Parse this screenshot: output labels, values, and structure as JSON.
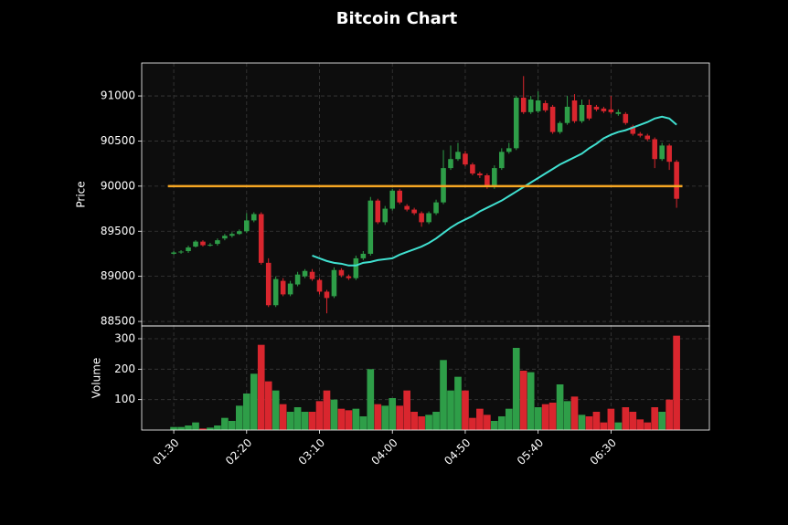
{
  "chart_data": {
    "type": "candlestick",
    "title": "Bitcoin Chart",
    "ylabel": "Price",
    "x": [
      "01:30",
      null,
      null,
      null,
      null,
      null,
      null,
      null,
      null,
      null,
      "02:20",
      null,
      null,
      null,
      null,
      null,
      null,
      null,
      null,
      null,
      "03:10",
      null,
      null,
      null,
      null,
      null,
      null,
      null,
      null,
      null,
      "04:00",
      null,
      null,
      null,
      null,
      null,
      null,
      null,
      null,
      null,
      "04:50",
      null,
      null,
      null,
      null,
      null,
      null,
      null,
      null,
      null,
      "05:40",
      null,
      null,
      null,
      null,
      null,
      null,
      null,
      null,
      null,
      "06:30",
      null,
      null,
      null,
      null,
      null,
      null,
      null,
      null,
      null
    ],
    "open": [
      89250,
      89265,
      89280,
      89330,
      89385,
      89340,
      89360,
      89420,
      89450,
      89470,
      89500,
      89620,
      89690,
      89150,
      88680,
      88950,
      88800,
      88910,
      89000,
      89050,
      88960,
      88830,
      88780,
      89070,
      89000,
      88980,
      89200,
      89250,
      89840,
      89600,
      89750,
      89950,
      89780,
      89740,
      89700,
      89600,
      89700,
      89820,
      90200,
      90300,
      90360,
      90240,
      90140,
      90120,
      89990,
      90200,
      90380,
      90420,
      90980,
      90820,
      90830,
      90920,
      90880,
      90600,
      90700,
      90950,
      90720,
      90900,
      90880,
      90860,
      90850,
      90800,
      90800,
      90660,
      90580,
      90560,
      90520,
      90300,
      90450,
      90270
    ],
    "high": [
      89280,
      89290,
      89340,
      89400,
      89400,
      89370,
      89420,
      89470,
      89490,
      89520,
      89700,
      89710,
      89710,
      89200,
      89000,
      88980,
      88950,
      89050,
      89080,
      89080,
      88980,
      88850,
      89100,
      89090,
      89020,
      89230,
      89280,
      89880,
      89860,
      89780,
      89970,
      89970,
      89800,
      89760,
      89720,
      89720,
      89850,
      90400,
      90450,
      90480,
      90390,
      90260,
      90160,
      90140,
      90230,
      90420,
      90480,
      91000,
      91220,
      91000,
      91050,
      90950,
      90900,
      90720,
      91000,
      91020,
      90960,
      90960,
      90900,
      90880,
      91000,
      90850,
      90820,
      90680,
      90600,
      90580,
      90540,
      90480,
      90470,
      90290
    ],
    "low": [
      89240,
      89250,
      89260,
      89320,
      89330,
      89330,
      89340,
      89400,
      89430,
      89460,
      89480,
      89600,
      89130,
      88660,
      88660,
      88780,
      88780,
      88890,
      88980,
      88950,
      88800,
      88590,
      88760,
      88990,
      88960,
      88960,
      89180,
      89230,
      89580,
      89570,
      89730,
      89800,
      89720,
      89680,
      89550,
      89580,
      89680,
      89800,
      90180,
      90280,
      90220,
      90120,
      90090,
      89970,
      89970,
      90180,
      90360,
      90400,
      90800,
      90800,
      90810,
      90820,
      90580,
      90580,
      90680,
      90700,
      90700,
      90730,
      90830,
      90810,
      90800,
      90780,
      90680,
      90560,
      90540,
      90500,
      90200,
      90280,
      90180,
      89760
    ],
    "close": [
      89265,
      89275,
      89320,
      89385,
      89345,
      89350,
      89400,
      89450,
      89470,
      89500,
      89620,
      89690,
      89150,
      88680,
      88970,
      88800,
      88920,
      89020,
      89060,
      88970,
      88830,
      88760,
      89070,
      89010,
      88980,
      89200,
      89250,
      89840,
      89600,
      89750,
      89950,
      89820,
      89740,
      89700,
      89600,
      89700,
      89820,
      90200,
      90300,
      90380,
      90240,
      90140,
      90120,
      89990,
      90200,
      90380,
      90420,
      90980,
      90820,
      90960,
      90950,
      90840,
      90600,
      90700,
      90880,
      90720,
      90900,
      90750,
      90850,
      90830,
      90820,
      90820,
      90700,
      90580,
      90560,
      90520,
      90300,
      90450,
      90270,
      89860
    ],
    "ma_values": [
      null,
      null,
      null,
      null,
      null,
      null,
      null,
      null,
      null,
      null,
      null,
      null,
      null,
      null,
      null,
      null,
      null,
      null,
      null,
      89230,
      89200,
      89170,
      89150,
      89140,
      89120,
      89120,
      89150,
      89160,
      89180,
      89190,
      89200,
      89240,
      89270,
      89300,
      89330,
      89370,
      89420,
      89480,
      89540,
      89590,
      89630,
      89670,
      89720,
      89760,
      89800,
      89840,
      89890,
      89940,
      89990,
      90040,
      90090,
      90140,
      90190,
      90240,
      90280,
      90320,
      90360,
      90420,
      90470,
      90530,
      90570,
      90600,
      90620,
      90650,
      90680,
      90710,
      90750,
      90770,
      90750,
      90680
    ],
    "ma_color": "#40e0d0",
    "hline": {
      "value": 90000,
      "color": "#f5a623"
    },
    "up_color": "#2e9e48",
    "down_color": "#d9262e",
    "xlim": [
      -4.4,
      73.5
    ],
    "ylim": [
      88450,
      91365
    ],
    "yticks": [
      88500,
      89000,
      89500,
      90000,
      90500,
      91000
    ],
    "grid": true,
    "volume": {
      "ylabel": "Volume",
      "values": [
        10,
        10,
        15,
        25,
        5,
        8,
        15,
        40,
        30,
        80,
        120,
        185,
        280,
        160,
        130,
        85,
        60,
        75,
        60,
        60,
        95,
        130,
        100,
        70,
        65,
        70,
        45,
        200,
        85,
        80,
        105,
        80,
        130,
        60,
        45,
        50,
        60,
        230,
        130,
        175,
        130,
        40,
        70,
        50,
        30,
        45,
        70,
        270,
        195,
        190,
        75,
        85,
        90,
        150,
        95,
        110,
        50,
        45,
        60,
        25,
        70,
        25,
        75,
        60,
        35,
        25,
        75,
        60,
        100,
        310
      ],
      "ylim": [
        0,
        342
      ],
      "yticks": [
        100,
        200,
        300
      ]
    }
  }
}
